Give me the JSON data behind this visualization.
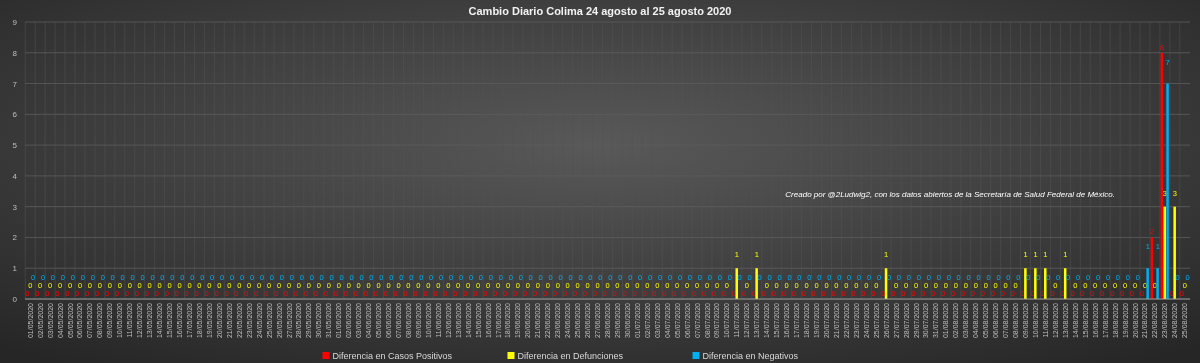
{
  "chart_data": {
    "type": "bar",
    "title": "Cambio Diario Colima 24 agosto al 25 agosto 2020",
    "categories": [
      "01/05/2020",
      "02/05/2020",
      "03/05/2020",
      "04/05/2020",
      "05/05/2020",
      "06/05/2020",
      "07/05/2020",
      "08/05/2020",
      "09/05/2020",
      "10/05/2020",
      "11/05/2020",
      "12/05/2020",
      "13/05/2020",
      "14/05/2020",
      "15/05/2020",
      "16/05/2020",
      "17/05/2020",
      "18/05/2020",
      "19/05/2020",
      "20/05/2020",
      "21/05/2020",
      "22/05/2020",
      "23/05/2020",
      "24/05/2020",
      "25/05/2020",
      "26/05/2020",
      "27/05/2020",
      "28/05/2020",
      "29/05/2020",
      "30/05/2020",
      "31/05/2020",
      "01/06/2020",
      "02/06/2020",
      "03/06/2020",
      "04/06/2020",
      "05/06/2020",
      "06/06/2020",
      "07/06/2020",
      "08/06/2020",
      "09/06/2020",
      "10/06/2020",
      "11/06/2020",
      "12/06/2020",
      "13/06/2020",
      "14/06/2020",
      "15/06/2020",
      "16/06/2020",
      "17/06/2020",
      "18/06/2020",
      "19/06/2020",
      "20/06/2020",
      "21/06/2020",
      "22/06/2020",
      "23/06/2020",
      "24/06/2020",
      "25/06/2020",
      "26/06/2020",
      "27/06/2020",
      "28/06/2020",
      "29/06/2020",
      "30/06/2020",
      "01/07/2020",
      "02/07/2020",
      "03/07/2020",
      "04/07/2020",
      "05/07/2020",
      "06/07/2020",
      "07/07/2020",
      "08/07/2020",
      "09/07/2020",
      "10/07/2020",
      "11/07/2020",
      "12/07/2020",
      "13/07/2020",
      "14/07/2020",
      "15/07/2020",
      "16/07/2020",
      "17/07/2020",
      "18/07/2020",
      "19/07/2020",
      "20/07/2020",
      "21/07/2020",
      "22/07/2020",
      "23/07/2020",
      "24/07/2020",
      "25/07/2020",
      "26/07/2020",
      "27/07/2020",
      "28/07/2020",
      "29/07/2020",
      "30/07/2020",
      "31/07/2020",
      "01/08/2020",
      "02/08/2020",
      "03/08/2020",
      "04/08/2020",
      "05/08/2020",
      "06/08/2020",
      "07/08/2020",
      "08/08/2020",
      "09/08/2020",
      "10/08/2020",
      "11/08/2020",
      "12/08/2020",
      "13/08/2020",
      "14/08/2020",
      "15/08/2020",
      "16/08/2020",
      "17/08/2020",
      "18/08/2020",
      "19/08/2020",
      "20/08/2020",
      "21/08/2020",
      "22/08/2020",
      "23/08/2020",
      "24/08/2020",
      "25/08/2020"
    ],
    "series": [
      {
        "name": "Diferencia en Casos Positivos",
        "color": "#ff0000",
        "values": [
          0,
          0,
          0,
          0,
          0,
          0,
          0,
          0,
          0,
          0,
          0,
          0,
          0,
          0,
          0,
          0,
          0,
          0,
          0,
          0,
          0,
          0,
          0,
          0,
          0,
          0,
          0,
          0,
          0,
          0,
          0,
          0,
          0,
          0,
          0,
          0,
          0,
          0,
          0,
          0,
          0,
          0,
          0,
          0,
          0,
          0,
          0,
          0,
          0,
          0,
          0,
          0,
          0,
          0,
          0,
          0,
          0,
          0,
          0,
          0,
          0,
          0,
          0,
          0,
          0,
          0,
          0,
          0,
          0,
          0,
          0,
          0,
          0,
          0,
          0,
          0,
          0,
          0,
          0,
          0,
          0,
          0,
          0,
          0,
          0,
          0,
          0,
          0,
          0,
          0,
          0,
          0,
          0,
          0,
          0,
          0,
          0,
          0,
          0,
          0,
          0,
          0,
          0,
          0,
          0,
          0,
          0,
          0,
          0,
          0,
          0,
          0,
          0,
          2,
          8,
          0,
          0
        ]
      },
      {
        "name": "Diferencia en Defunciones",
        "color": "#ffff00",
        "values": [
          0,
          0,
          0,
          0,
          0,
          0,
          0,
          0,
          0,
          0,
          0,
          0,
          0,
          0,
          0,
          0,
          0,
          0,
          0,
          0,
          0,
          0,
          0,
          0,
          0,
          0,
          0,
          0,
          0,
          0,
          0,
          0,
          0,
          0,
          0,
          0,
          0,
          0,
          0,
          0,
          0,
          0,
          0,
          0,
          0,
          0,
          0,
          0,
          0,
          0,
          0,
          0,
          0,
          0,
          0,
          0,
          0,
          0,
          0,
          0,
          0,
          0,
          0,
          0,
          0,
          0,
          0,
          0,
          0,
          0,
          0,
          1,
          0,
          1,
          0,
          0,
          0,
          0,
          0,
          0,
          0,
          0,
          0,
          0,
          0,
          0,
          1,
          0,
          0,
          0,
          0,
          0,
          0,
          0,
          0,
          0,
          0,
          0,
          0,
          0,
          1,
          1,
          1,
          0,
          1,
          0,
          0,
          0,
          0,
          0,
          0,
          0,
          0,
          0,
          3,
          3,
          0
        ]
      },
      {
        "name": "Diferencia en Negativos",
        "color": "#00b0f0",
        "values": [
          0,
          0,
          0,
          0,
          0,
          0,
          0,
          0,
          0,
          0,
          0,
          0,
          0,
          0,
          0,
          0,
          0,
          0,
          0,
          0,
          0,
          0,
          0,
          0,
          0,
          0,
          0,
          0,
          0,
          0,
          0,
          0,
          0,
          0,
          0,
          0,
          0,
          0,
          0,
          0,
          0,
          0,
          0,
          0,
          0,
          0,
          0,
          0,
          0,
          0,
          0,
          0,
          0,
          0,
          0,
          0,
          0,
          0,
          0,
          0,
          0,
          0,
          0,
          0,
          0,
          0,
          0,
          0,
          0,
          0,
          0,
          0,
          0,
          0,
          0,
          0,
          0,
          0,
          0,
          0,
          0,
          0,
          0,
          0,
          0,
          0,
          0,
          0,
          0,
          0,
          0,
          0,
          0,
          0,
          0,
          0,
          0,
          0,
          0,
          0,
          0,
          0,
          0,
          0,
          0,
          0,
          0,
          0,
          0,
          0,
          0,
          0,
          1,
          1,
          7,
          0,
          0
        ]
      }
    ],
    "ylim": [
      0,
      9
    ],
    "yticks": [
      0,
      1,
      2,
      3,
      4,
      5,
      6,
      7,
      8,
      9
    ],
    "grid": true,
    "legend": "bottom",
    "data_labels": true,
    "annotations": [
      "Creado por @2Ludwig2, con los datos abiertos de la Secretaría de Salud Federal de México."
    ]
  }
}
